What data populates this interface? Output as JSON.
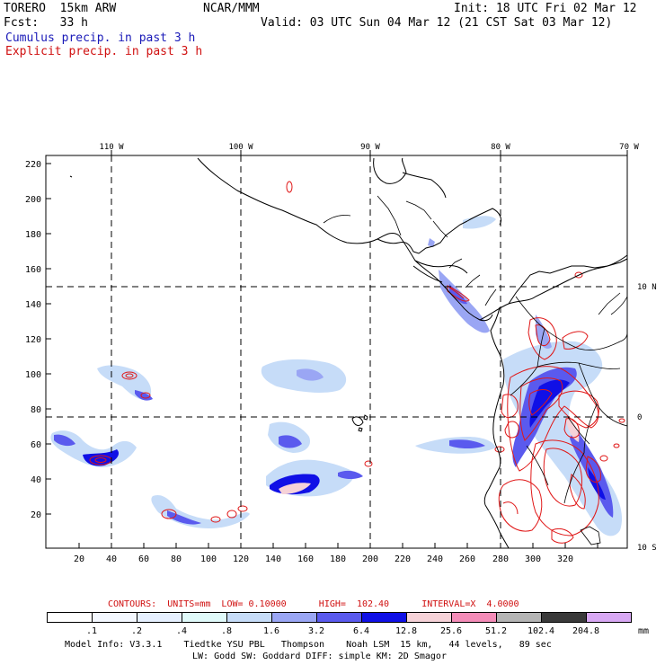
{
  "header": {
    "model": "TORERO  15km ARW",
    "org": "NCAR/MMM",
    "init": "Init: 18 UTC Fri 02 Mar 12",
    "fcst": "Fcst:   33 h",
    "valid": "Valid: 03 UTC Sun 04 Mar 12 (21 CST Sat 03 Mar 12)",
    "field1": "Cumulus precip. in past 3 h",
    "field2": "Explicit precip. in past 3 h",
    "field1_color": "#1a1ab8",
    "field2_color": "#d01010"
  },
  "map": {
    "lon_labels": [
      "110 W",
      "100 W",
      "90 W",
      "80 W",
      "70 W"
    ],
    "lat_labels": [
      "10 N",
      "0",
      "10 S"
    ],
    "y_ticks": [
      "220",
      "200",
      "180",
      "160",
      "140",
      "120",
      "100",
      "80",
      "60",
      "40",
      "20"
    ],
    "x_ticks": [
      "20",
      "40",
      "60",
      "80",
      "100",
      "120",
      "140",
      "160",
      "180",
      "200",
      "220",
      "240",
      "260",
      "280",
      "300",
      "320"
    ]
  },
  "contour_info": {
    "label": "CONTOURS:  UNITS=mm  LOW= 0.10000      HIGH=  102.40      INTERVAL=X  4.0000"
  },
  "colorbar": {
    "colors": [
      "#ffffff",
      "#f4f8ff",
      "#e6f0ff",
      "#e0fafa",
      "#c6dcf8",
      "#9aa6f4",
      "#5a5aee",
      "#1010e6",
      "#f6d2d8",
      "#f48cb8",
      "#b4b4b4",
      "#3a3a3a",
      "#d8a8f4"
    ],
    "labels": [
      ".1",
      ".2",
      ".4",
      ".8",
      "1.6",
      "3.2",
      "6.4",
      "12.8",
      "25.6",
      "51.2",
      "102.4",
      "204.8"
    ],
    "units": "mm"
  },
  "footer": {
    "line1": "Model Info: V3.3.1    Tiedtke YSU PBL   Thompson    Noah LSM  15 km,   44 levels,   89 sec",
    "line2": "LW: Godd SW: Goddard DIFF: simple KM: 2D Smagor"
  }
}
